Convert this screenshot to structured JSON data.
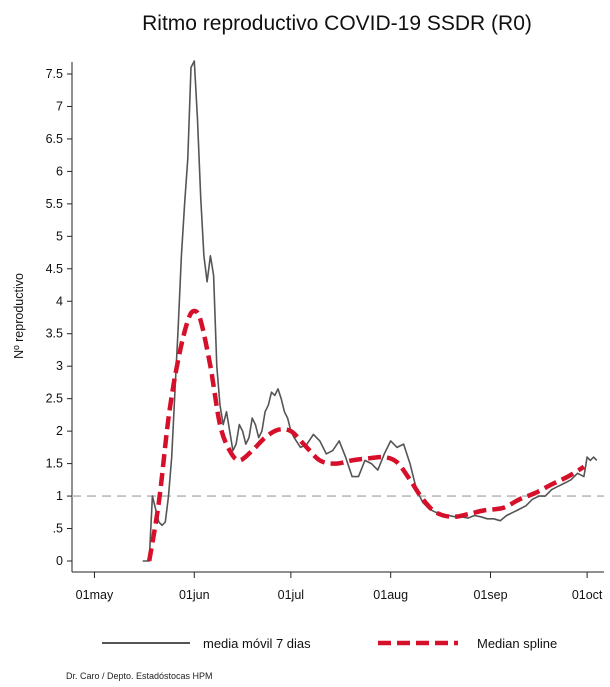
{
  "chart_data": {
    "type": "line",
    "title": "Ritmo reproductivo COVID-19 SSDR (R0)",
    "ylabel": "Nº reproductivo",
    "xlabel": "",
    "x_ticks": [
      "01may",
      "01jun",
      "01jul",
      "01aug",
      "01sep",
      "01oct"
    ],
    "y_ticks": [
      "0",
      ".5",
      "1",
      "1.5",
      "2",
      "2.5",
      "3",
      "3.5",
      "4",
      "4.5",
      "5",
      "5.5",
      "6",
      "6.5",
      "7",
      "7.5"
    ],
    "ylim": [
      0,
      7.5
    ],
    "xlim": [
      "2020-04-29",
      "2020-10-05"
    ],
    "grid": false,
    "reference_line": {
      "y": 1,
      "style": "dashed",
      "color": "#bbbbbb"
    },
    "legend_position": "bottom",
    "series": [
      {
        "name": "media móvil 7 dias",
        "color": "#555555",
        "style": "solid",
        "x": [
          "2020-05-16",
          "2020-05-17",
          "2020-05-18",
          "2020-05-19",
          "2020-05-20",
          "2020-05-21",
          "2020-05-22",
          "2020-05-23",
          "2020-05-24",
          "2020-05-25",
          "2020-05-26",
          "2020-05-27",
          "2020-05-28",
          "2020-05-29",
          "2020-05-30",
          "2020-05-31",
          "2020-06-01",
          "2020-06-02",
          "2020-06-03",
          "2020-06-04",
          "2020-06-05",
          "2020-06-06",
          "2020-06-07",
          "2020-06-08",
          "2020-06-09",
          "2020-06-10",
          "2020-06-11",
          "2020-06-12",
          "2020-06-13",
          "2020-06-14",
          "2020-06-15",
          "2020-06-16",
          "2020-06-17",
          "2020-06-18",
          "2020-06-19",
          "2020-06-20",
          "2020-06-21",
          "2020-06-22",
          "2020-06-23",
          "2020-06-24",
          "2020-06-25",
          "2020-06-26",
          "2020-06-27",
          "2020-06-28",
          "2020-06-29",
          "2020-06-30",
          "2020-07-01",
          "2020-07-02",
          "2020-07-04",
          "2020-07-06",
          "2020-07-08",
          "2020-07-10",
          "2020-07-12",
          "2020-07-14",
          "2020-07-16",
          "2020-07-18",
          "2020-07-20",
          "2020-07-22",
          "2020-07-24",
          "2020-07-26",
          "2020-07-28",
          "2020-07-30",
          "2020-08-01",
          "2020-08-03",
          "2020-08-05",
          "2020-08-07",
          "2020-08-09",
          "2020-08-11",
          "2020-08-13",
          "2020-08-15",
          "2020-08-17",
          "2020-08-19",
          "2020-08-21",
          "2020-08-23",
          "2020-08-25",
          "2020-08-27",
          "2020-08-29",
          "2020-08-31",
          "2020-09-02",
          "2020-09-04",
          "2020-09-06",
          "2020-09-08",
          "2020-09-10",
          "2020-09-12",
          "2020-09-14",
          "2020-09-16",
          "2020-09-18",
          "2020-09-20",
          "2020-09-22",
          "2020-09-24",
          "2020-09-26",
          "2020-09-28",
          "2020-09-30",
          "2020-10-01",
          "2020-10-02",
          "2020-10-03",
          "2020-10-04"
        ],
        "values": [
          0,
          0,
          0,
          1,
          0.8,
          0.6,
          0.55,
          0.6,
          1,
          1.6,
          2.6,
          3.6,
          4.7,
          5.5,
          6.2,
          7.6,
          7.7,
          6.8,
          5.6,
          4.7,
          4.3,
          4.7,
          4.4,
          3.0,
          2.4,
          2.1,
          2.3,
          2.0,
          1.7,
          1.8,
          2.1,
          2.0,
          1.8,
          1.9,
          2.2,
          2.1,
          1.9,
          2.0,
          2.3,
          2.4,
          2.6,
          2.55,
          2.65,
          2.5,
          2.3,
          2.2,
          2.0,
          1.9,
          1.75,
          1.8,
          1.95,
          1.85,
          1.65,
          1.7,
          1.85,
          1.6,
          1.3,
          1.3,
          1.55,
          1.5,
          1.4,
          1.65,
          1.85,
          1.75,
          1.8,
          1.5,
          1.1,
          0.9,
          0.8,
          0.75,
          0.72,
          0.7,
          0.68,
          0.68,
          0.66,
          0.7,
          0.68,
          0.65,
          0.65,
          0.62,
          0.7,
          0.75,
          0.8,
          0.85,
          0.95,
          1.0,
          1.0,
          1.1,
          1.15,
          1.2,
          1.25,
          1.35,
          1.3,
          1.6,
          1.55,
          1.6,
          1.55
        ]
      },
      {
        "name": "Median spline",
        "color": "#d6102a",
        "style": "dashed",
        "x": [
          "2020-05-18",
          "2020-05-21",
          "2020-05-24",
          "2020-05-27",
          "2020-05-30",
          "2020-06-01",
          "2020-06-03",
          "2020-06-06",
          "2020-06-09",
          "2020-06-12",
          "2020-06-15",
          "2020-06-19",
          "2020-06-23",
          "2020-06-27",
          "2020-07-01",
          "2020-07-05",
          "2020-07-10",
          "2020-07-15",
          "2020-07-20",
          "2020-07-25",
          "2020-07-30",
          "2020-08-03",
          "2020-08-07",
          "2020-08-11",
          "2020-08-15",
          "2020-08-20",
          "2020-08-25",
          "2020-08-30",
          "2020-09-05",
          "2020-09-10",
          "2020-09-15",
          "2020-09-20",
          "2020-09-25",
          "2020-09-30"
        ],
        "values": [
          0,
          0.9,
          2.2,
          3.1,
          3.7,
          3.85,
          3.7,
          3.0,
          2.1,
          1.7,
          1.55,
          1.7,
          1.9,
          2.02,
          2.0,
          1.8,
          1.55,
          1.5,
          1.55,
          1.58,
          1.6,
          1.52,
          1.25,
          0.95,
          0.75,
          0.68,
          0.72,
          0.78,
          0.82,
          0.95,
          1.05,
          1.18,
          1.3,
          1.45
        ]
      }
    ]
  },
  "legend": {
    "items": [
      {
        "label": "media móvil 7 dias",
        "color": "#555555",
        "style": "solid"
      },
      {
        "label": "Median spline",
        "color": "#d6102a",
        "style": "dashed"
      }
    ]
  },
  "credit": "Dr. Caro / Depto. Estadóstocas HPM"
}
